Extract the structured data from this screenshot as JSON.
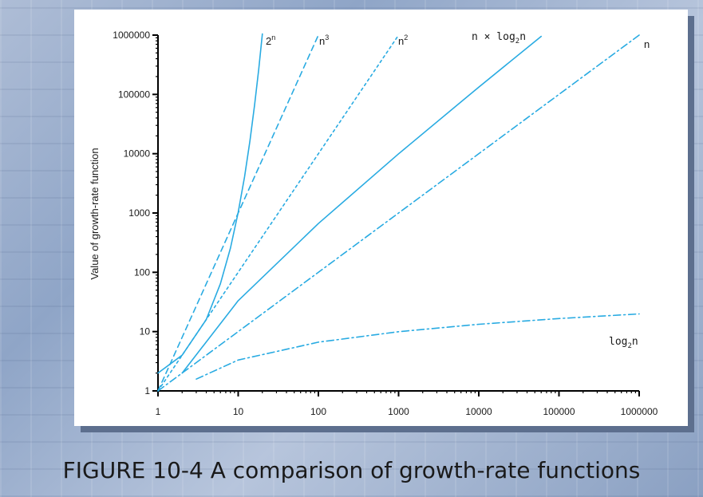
{
  "caption": "FIGURE 10-4 A comparison of growth-rate functions",
  "chart_data": {
    "type": "line",
    "title": "",
    "xlabel": "",
    "ylabel": "Value of growth-rate function",
    "x_scale": "log",
    "y_scale": "log",
    "xlim": [
      1,
      1000000
    ],
    "ylim": [
      1,
      1000000
    ],
    "x_ticks": [
      "1",
      "10",
      "100",
      "1000",
      "10000",
      "100000",
      "1000000"
    ],
    "y_ticks": [
      "1",
      "10",
      "100",
      "1000",
      "10000",
      "100000",
      "1000000"
    ],
    "x_tick_values": [
      1,
      10,
      100,
      1000,
      10000,
      100000,
      1000000
    ],
    "y_tick_values": [
      1,
      10,
      100,
      1000,
      10000,
      100000,
      1000000
    ],
    "grid": false,
    "line_color": "#29abe2",
    "series": [
      {
        "name": "2ⁿ",
        "label_base": "2",
        "label_sup": "n",
        "style": "solid",
        "x": [
          1,
          2,
          4,
          6,
          8,
          10,
          12,
          14,
          16,
          18,
          20
        ],
        "y": [
          2,
          4,
          16,
          64,
          256,
          1024,
          4096,
          16384,
          65536,
          262144,
          1048576
        ]
      },
      {
        "name": "n³",
        "label_base": "n",
        "label_sup": "3",
        "style": "dashed",
        "x": [
          1,
          10,
          100
        ],
        "y": [
          1,
          1000,
          1000000
        ]
      },
      {
        "name": "n²",
        "label_base": "n",
        "label_sup": "2",
        "style": "dotted",
        "x": [
          1,
          10,
          100,
          1000
        ],
        "y": [
          1,
          100,
          10000,
          1000000
        ]
      },
      {
        "name": "n × log₂n",
        "label_text": "n × log",
        "label_sub": "2",
        "label_tail": "n",
        "style": "solid",
        "x": [
          2,
          10,
          100,
          1000,
          10000,
          60000
        ],
        "y": [
          2,
          33.2,
          664,
          9966,
          132877,
          952000
        ]
      },
      {
        "name": "n",
        "label_base": "n",
        "style": "dashdot",
        "x": [
          1,
          1000000
        ],
        "y": [
          1,
          1000000
        ]
      },
      {
        "name": "log₂n",
        "label_text": "log",
        "label_sub": "2",
        "label_tail": "n",
        "style": "dashdot",
        "x": [
          3,
          10,
          100,
          1000,
          10000,
          100000,
          1000000
        ],
        "y": [
          1.58,
          3.32,
          6.64,
          9.97,
          13.3,
          16.6,
          19.9
        ]
      }
    ]
  }
}
